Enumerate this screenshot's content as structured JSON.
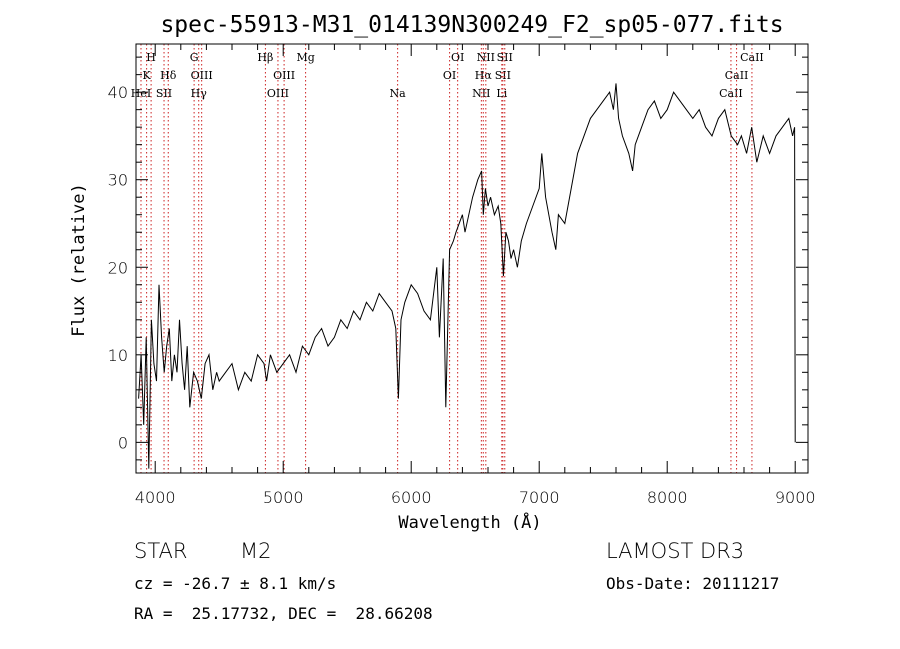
{
  "chart_data": {
    "type": "line",
    "title": "spec-55913-M31_014139N300249_F2_sp05-077.fits",
    "xlabel": "Wavelength (Å)",
    "ylabel": "Flux (relative)",
    "xlim": [
      3850,
      9100
    ],
    "ylim": [
      -3.5,
      45.5
    ],
    "x_ticks": [
      4000,
      5000,
      6000,
      7000,
      8000,
      9000
    ],
    "y_ticks": [
      0,
      10,
      20,
      30,
      40
    ],
    "line_color": "#000000",
    "marker_color": "#cc2222",
    "series": [
      {
        "name": "flux",
        "x": [
          3870,
          3890,
          3910,
          3930,
          3950,
          3970,
          3990,
          4010,
          4030,
          4050,
          4070,
          4090,
          4110,
          4130,
          4150,
          4170,
          4190,
          4210,
          4230,
          4250,
          4270,
          4300,
          4330,
          4360,
          4390,
          4420,
          4450,
          4480,
          4500,
          4550,
          4600,
          4650,
          4700,
          4750,
          4800,
          4850,
          4870,
          4900,
          4950,
          5000,
          5050,
          5100,
          5150,
          5200,
          5250,
          5300,
          5350,
          5400,
          5450,
          5500,
          5550,
          5600,
          5650,
          5700,
          5750,
          5800,
          5850,
          5880,
          5900,
          5920,
          5950,
          6000,
          6050,
          6100,
          6150,
          6200,
          6220,
          6250,
          6270,
          6300,
          6330,
          6350,
          6400,
          6420,
          6450,
          6480,
          6500,
          6520,
          6550,
          6563,
          6580,
          6600,
          6620,
          6650,
          6680,
          6700,
          6720,
          6740,
          6760,
          6780,
          6800,
          6830,
          6860,
          6900,
          6950,
          7000,
          7020,
          7050,
          7100,
          7130,
          7150,
          7200,
          7250,
          7300,
          7350,
          7400,
          7450,
          7500,
          7550,
          7580,
          7600,
          7620,
          7650,
          7700,
          7730,
          7750,
          7800,
          7850,
          7900,
          7950,
          8000,
          8050,
          8100,
          8150,
          8200,
          8250,
          8300,
          8350,
          8400,
          8450,
          8500,
          8550,
          8580,
          8620,
          8660,
          8700,
          8750,
          8800,
          8850,
          8900,
          8950,
          8980,
          8995,
          9000
        ],
        "y": [
          5,
          10,
          2,
          12,
          -3,
          14,
          9,
          7,
          18,
          12,
          8,
          11,
          13,
          7,
          10,
          8,
          14,
          9,
          6,
          11,
          4,
          8,
          7,
          5,
          9,
          10,
          6,
          8,
          7,
          8,
          9,
          6,
          8,
          7,
          10,
          9,
          7,
          10,
          8,
          9,
          10,
          8,
          11,
          10,
          12,
          13,
          11,
          12,
          14,
          13,
          15,
          14,
          16,
          15,
          17,
          16,
          15,
          13,
          5,
          14,
          16,
          18,
          17,
          15,
          14,
          20,
          12,
          21,
          4,
          22,
          23,
          24,
          26,
          24,
          26,
          28,
          29,
          30,
          31,
          26,
          29,
          27,
          28,
          26,
          27,
          25,
          19,
          24,
          23,
          21,
          22,
          20,
          23,
          25,
          27,
          29,
          33,
          28,
          24,
          22,
          26,
          25,
          29,
          33,
          35,
          37,
          38,
          39,
          40,
          38,
          41,
          37,
          35,
          33,
          31,
          34,
          36,
          38,
          39,
          37,
          38,
          40,
          39,
          38,
          37,
          38,
          36,
          35,
          37,
          38,
          35,
          34,
          35,
          33,
          36,
          32,
          35,
          33,
          35,
          36,
          37,
          35,
          36,
          0
        ]
      }
    ],
    "line_markers": [
      {
        "name": "HeI",
        "wavelength": 3889,
        "row": 2
      },
      {
        "name": "K",
        "wavelength": 3933,
        "row": 1
      },
      {
        "name": "H",
        "wavelength": 3968,
        "row": 0
      },
      {
        "name": "SII",
        "wavelength": 4069,
        "row": 2
      },
      {
        "name": "Hδ",
        "wavelength": 4102,
        "row": 1
      },
      {
        "name": "G",
        "wavelength": 4304,
        "row": 0
      },
      {
        "name": "Hγ",
        "wavelength": 4340,
        "row": 2
      },
      {
        "name": "OIII",
        "wavelength": 4363,
        "row": 1
      },
      {
        "name": "Hβ",
        "wavelength": 4861,
        "row": 0
      },
      {
        "name": "OIII",
        "wavelength": 4959,
        "row": 2
      },
      {
        "name": "OIII",
        "wavelength": 5007,
        "row": 1
      },
      {
        "name": "Mg",
        "wavelength": 5175,
        "row": 0
      },
      {
        "name": "Na",
        "wavelength": 5894,
        "row": 2
      },
      {
        "name": "OI",
        "wavelength": 6300,
        "row": 1
      },
      {
        "name": "OI",
        "wavelength": 6363,
        "row": 0
      },
      {
        "name": "NII",
        "wavelength": 6548,
        "row": 2
      },
      {
        "name": "Hα",
        "wavelength": 6563,
        "row": 1
      },
      {
        "name": "NII",
        "wavelength": 6583,
        "row": 0
      },
      {
        "name": "SII",
        "wavelength": 6716,
        "row": 1
      },
      {
        "name": "Li",
        "wavelength": 6708,
        "row": 2
      },
      {
        "name": "SII",
        "wavelength": 6731,
        "row": 0
      },
      {
        "name": "CaII",
        "wavelength": 8498,
        "row": 2
      },
      {
        "name": "CaII",
        "wavelength": 8542,
        "row": 1
      },
      {
        "name": "CaII",
        "wavelength": 8662,
        "row": 0
      }
    ]
  },
  "info": {
    "class_label": "STAR",
    "subclass": "M2",
    "survey": "LAMOST DR3",
    "cz": "cz = -26.7 ± 8.1 km/s",
    "obs_date": "Obs-Date: 20111217",
    "coords": "RA =  25.17732, DEC =  28.66208"
  }
}
